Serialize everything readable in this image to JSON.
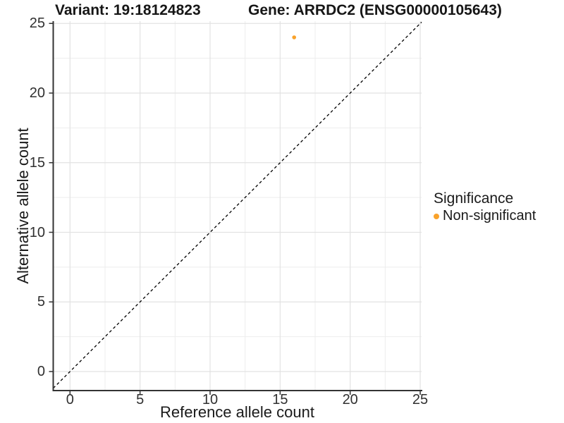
{
  "titles": {
    "variant": "Variant: 19:18124823",
    "gene": "Gene: ARRDC2 (ENSG00000105643)"
  },
  "chart_data": {
    "type": "scatter",
    "xlabel": "Reference allele count",
    "ylabel": "Alternative allele count",
    "xlim": [
      -1.2,
      25.1
    ],
    "ylim": [
      -1.35,
      25.2
    ],
    "x_ticks": [
      0,
      5,
      10,
      15,
      20,
      25
    ],
    "y_ticks": [
      0,
      5,
      10,
      15,
      20,
      25
    ],
    "x_minor_ticks": [
      2.5,
      7.5,
      12.5,
      17.5,
      22.5
    ],
    "y_minor_ticks": [
      2.5,
      7.5,
      12.5,
      17.5,
      22.5
    ],
    "grid": true,
    "reference_line": {
      "kind": "identity",
      "slope": 1,
      "intercept": 0,
      "style": "dashed",
      "color": "#000000"
    },
    "series": [
      {
        "name": "Non-significant",
        "color": "#F9A22B",
        "points": [
          {
            "x": 16,
            "y": 24
          }
        ]
      }
    ],
    "legend": {
      "title": "Significance",
      "position": "right",
      "entries": [
        {
          "label": "Non-significant",
          "color": "#F9A22B"
        }
      ]
    },
    "colors": {
      "panel_background": "#ffffff",
      "grid_major": "#e2e2e2",
      "grid_minor": "#ededed",
      "axis_line": "#333333",
      "tick_mark": "#333333",
      "tick_text": "#303030",
      "point": "#F9A22B"
    }
  }
}
